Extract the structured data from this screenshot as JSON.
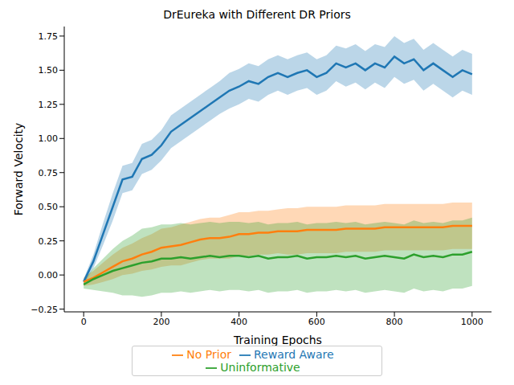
{
  "chart_data": {
    "type": "line",
    "title": "DrEureka with Different DR Priors",
    "x_label": "Training Epochs",
    "y_label": "Forward Velocity",
    "legend": "bottom",
    "grid": false,
    "x": [
      0,
      25,
      50,
      75,
      100,
      125,
      150,
      175,
      200,
      225,
      250,
      275,
      300,
      325,
      350,
      375,
      400,
      425,
      450,
      475,
      500,
      525,
      550,
      575,
      600,
      625,
      650,
      675,
      700,
      725,
      750,
      775,
      800,
      825,
      850,
      875,
      900,
      925,
      950,
      975,
      1000
    ],
    "xlim": [
      -50,
      1050
    ],
    "xticks": [
      0,
      200,
      400,
      600,
      800,
      1000
    ],
    "ylim": [
      -0.27,
      1.82
    ],
    "yticks": [
      {
        "value": -0.25,
        "label": "−0.25"
      },
      {
        "value": 0,
        "label": "0.00"
      },
      {
        "value": 0.25,
        "label": "0.25"
      },
      {
        "value": 0.5,
        "label": "0.50"
      },
      {
        "value": 0.75,
        "label": "0.75"
      },
      {
        "value": 1,
        "label": "1.00"
      },
      {
        "value": 1.25,
        "label": "1.25"
      },
      {
        "value": 1.5,
        "label": "1.50"
      },
      {
        "value": 1.75,
        "label": "1.75"
      }
    ],
    "series": [
      {
        "name": "Reward Aware",
        "color": "#1f77b4",
        "values": [
          -0.05,
          0.1,
          0.3,
          0.5,
          0.7,
          0.72,
          0.85,
          0.88,
          0.95,
          1.05,
          1.1,
          1.15,
          1.2,
          1.25,
          1.3,
          1.35,
          1.38,
          1.42,
          1.4,
          1.45,
          1.48,
          1.45,
          1.48,
          1.5,
          1.45,
          1.48,
          1.55,
          1.52,
          1.55,
          1.5,
          1.55,
          1.52,
          1.6,
          1.55,
          1.58,
          1.5,
          1.55,
          1.5,
          1.45,
          1.5,
          1.47
        ],
        "lower": [
          -0.07,
          0.05,
          0.22,
          0.4,
          0.6,
          0.62,
          0.74,
          0.77,
          0.84,
          0.93,
          0.98,
          1.03,
          1.08,
          1.13,
          1.18,
          1.22,
          1.25,
          1.29,
          1.27,
          1.32,
          1.35,
          1.32,
          1.35,
          1.37,
          1.32,
          1.35,
          1.42,
          1.38,
          1.41,
          1.36,
          1.41,
          1.37,
          1.45,
          1.4,
          1.43,
          1.35,
          1.4,
          1.35,
          1.3,
          1.35,
          1.32
        ],
        "upper": [
          -0.03,
          0.15,
          0.38,
          0.6,
          0.8,
          0.82,
          0.96,
          0.99,
          1.06,
          1.17,
          1.22,
          1.27,
          1.32,
          1.37,
          1.42,
          1.48,
          1.51,
          1.55,
          1.53,
          1.58,
          1.61,
          1.58,
          1.61,
          1.63,
          1.58,
          1.61,
          1.68,
          1.66,
          1.69,
          1.64,
          1.69,
          1.67,
          1.75,
          1.7,
          1.73,
          1.65,
          1.7,
          1.65,
          1.6,
          1.65,
          1.62
        ]
      },
      {
        "name": "No Prior",
        "color": "#ff7f0e",
        "values": [
          -0.05,
          -0.02,
          0.02,
          0.06,
          0.1,
          0.12,
          0.15,
          0.17,
          0.2,
          0.21,
          0.22,
          0.24,
          0.26,
          0.27,
          0.27,
          0.28,
          0.3,
          0.3,
          0.31,
          0.31,
          0.32,
          0.32,
          0.32,
          0.33,
          0.33,
          0.33,
          0.33,
          0.34,
          0.34,
          0.34,
          0.34,
          0.35,
          0.35,
          0.35,
          0.35,
          0.35,
          0.35,
          0.35,
          0.36,
          0.36,
          0.36
        ],
        "lower": [
          -0.08,
          -0.07,
          -0.05,
          -0.03,
          0,
          0.01,
          0.03,
          0.04,
          0.06,
          0.07,
          0.07,
          0.09,
          0.11,
          0.12,
          0.12,
          0.12,
          0.14,
          0.14,
          0.15,
          0.15,
          0.16,
          0.15,
          0.15,
          0.16,
          0.16,
          0.16,
          0.16,
          0.17,
          0.17,
          0.17,
          0.17,
          0.18,
          0.18,
          0.18,
          0.18,
          0.18,
          0.18,
          0.18,
          0.19,
          0.19,
          0.19
        ],
        "upper": [
          -0.02,
          0.03,
          0.09,
          0.15,
          0.2,
          0.23,
          0.27,
          0.3,
          0.34,
          0.35,
          0.37,
          0.39,
          0.41,
          0.42,
          0.42,
          0.44,
          0.46,
          0.46,
          0.47,
          0.47,
          0.48,
          0.49,
          0.49,
          0.5,
          0.5,
          0.5,
          0.5,
          0.51,
          0.51,
          0.51,
          0.51,
          0.52,
          0.52,
          0.52,
          0.52,
          0.52,
          0.52,
          0.52,
          0.53,
          0.53,
          0.53
        ]
      },
      {
        "name": "Uninformative",
        "color": "#2ca02c",
        "values": [
          -0.07,
          -0.03,
          0,
          0.03,
          0.05,
          0.07,
          0.09,
          0.1,
          0.12,
          0.12,
          0.13,
          0.12,
          0.13,
          0.14,
          0.13,
          0.14,
          0.14,
          0.13,
          0.14,
          0.12,
          0.13,
          0.13,
          0.14,
          0.12,
          0.13,
          0.13,
          0.14,
          0.13,
          0.14,
          0.12,
          0.13,
          0.14,
          0.13,
          0.12,
          0.15,
          0.13,
          0.14,
          0.13,
          0.15,
          0.15,
          0.17
        ],
        "lower": [
          -0.1,
          -0.11,
          -0.12,
          -0.13,
          -0.15,
          -0.15,
          -0.16,
          -0.15,
          -0.13,
          -0.13,
          -0.12,
          -0.13,
          -0.12,
          -0.11,
          -0.12,
          -0.11,
          -0.11,
          -0.12,
          -0.11,
          -0.13,
          -0.12,
          -0.12,
          -0.11,
          -0.13,
          -0.12,
          -0.12,
          -0.11,
          -0.12,
          -0.11,
          -0.13,
          -0.12,
          -0.11,
          -0.12,
          -0.13,
          -0.1,
          -0.12,
          -0.11,
          -0.12,
          -0.1,
          -0.1,
          -0.08
        ],
        "upper": [
          -0.04,
          0.05,
          0.12,
          0.19,
          0.25,
          0.29,
          0.34,
          0.35,
          0.37,
          0.37,
          0.38,
          0.37,
          0.38,
          0.39,
          0.38,
          0.39,
          0.39,
          0.38,
          0.39,
          0.37,
          0.38,
          0.38,
          0.39,
          0.37,
          0.38,
          0.38,
          0.39,
          0.38,
          0.39,
          0.37,
          0.38,
          0.39,
          0.38,
          0.37,
          0.4,
          0.38,
          0.39,
          0.38,
          0.4,
          0.4,
          0.42
        ]
      }
    ]
  }
}
